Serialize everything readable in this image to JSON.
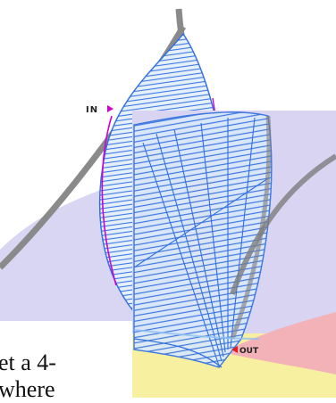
{
  "markers": {
    "in_label": "IN",
    "out_label": "OUT"
  },
  "caption": {
    "line1": "et a 4-",
    "line2": "where"
  },
  "colors": {
    "stitch_blue": "#2f6fe0",
    "stitch_light": "#8fc0f5",
    "outline_gray": "#8a8a8a",
    "lavender": "#c8c4ef",
    "pink": "#f2b2b8",
    "yellow": "#f7f0a0",
    "magenta": "#d000d0",
    "red_marker": "#e02020"
  }
}
